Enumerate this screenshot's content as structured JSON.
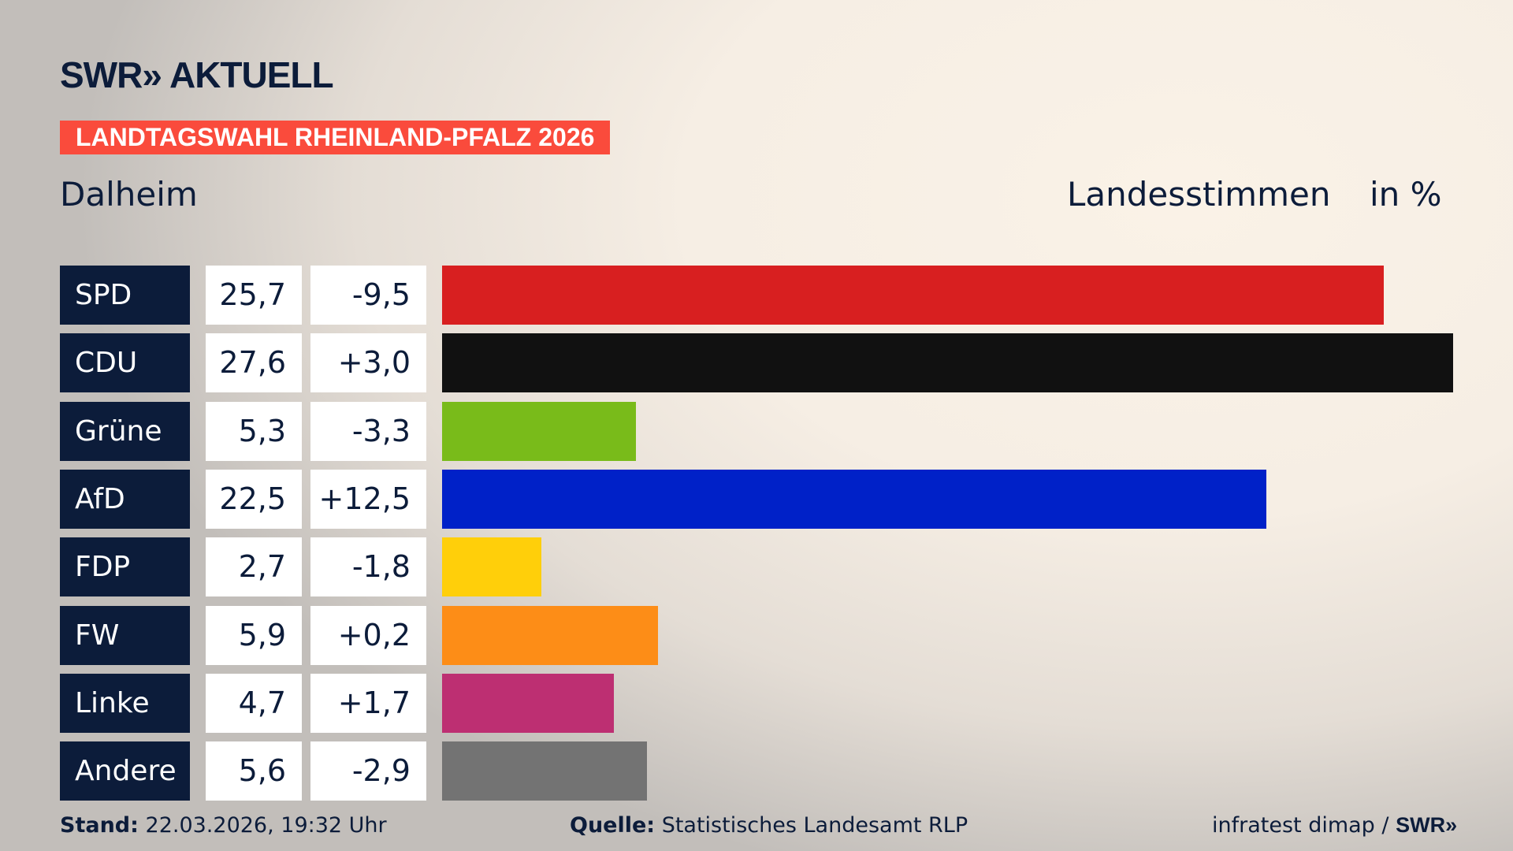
{
  "header": {
    "logo": "SWR» AKTUELL",
    "banner": "LANDTAGSWAHL RHEINLAND-PFALZ 2026",
    "place": "Dalheim",
    "metric": "Landesstimmen",
    "unit": "in %"
  },
  "chart_data": {
    "type": "bar",
    "orientation": "horizontal",
    "categories": [
      "SPD",
      "CDU",
      "Grüne",
      "AfD",
      "FDP",
      "FW",
      "Linke",
      "Andere"
    ],
    "values": [
      25.7,
      27.6,
      5.3,
      22.5,
      2.7,
      5.9,
      4.7,
      5.6
    ],
    "values_label": [
      "25,7",
      "27,6",
      "5,3",
      "22,5",
      "2,7",
      "5,9",
      "4,7",
      "5,6"
    ],
    "change_label": [
      "-9,5",
      "+3,0",
      "-3,3",
      "+12,5",
      "-1,8",
      "+0,2",
      "+1,7",
      "-2,9"
    ],
    "change": [
      -9.5,
      3.0,
      -3.3,
      12.5,
      -1.8,
      0.2,
      1.7,
      -2.9
    ],
    "colors": [
      "#d81f20",
      "#111111",
      "#79bb1a",
      "#0021c8",
      "#ffcf0a",
      "#fd8d17",
      "#bd2f72",
      "#737373"
    ]
  },
  "footer": {
    "stand_label": "Stand:",
    "stand": "22.03.2026, 19:32 Uhr",
    "source_label": "Quelle:",
    "source": "Statistisches Landesamt RLP",
    "credit": "infratest dimap / ",
    "credit_logo": "SWR»"
  }
}
